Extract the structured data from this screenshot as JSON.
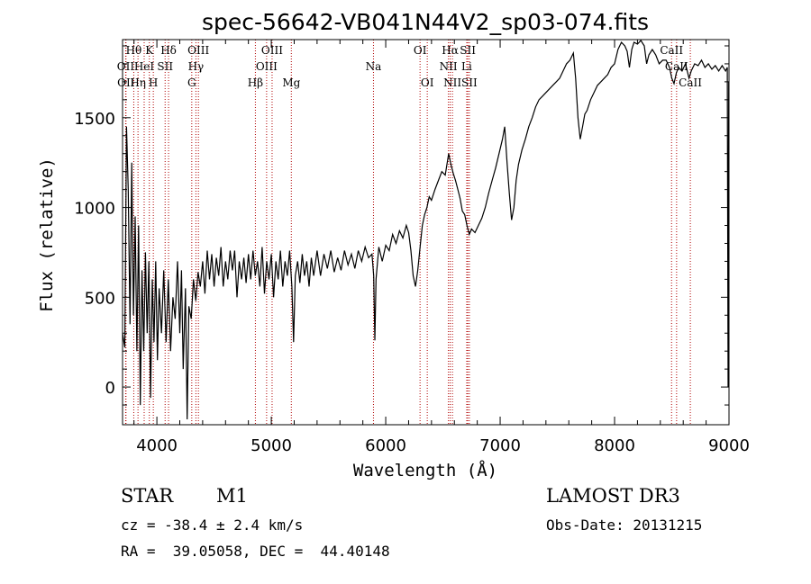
{
  "chart_data": {
    "type": "line",
    "title": "spec-56642-VB041N44V2_sp03-074.fits",
    "xlabel": "Wavelength (Å)",
    "ylabel": "Flux (relative)",
    "xlim": [
      3700,
      9000
    ],
    "ylim": [
      -210,
      1935
    ],
    "xticks": [
      4000,
      5000,
      6000,
      7000,
      8000,
      9000
    ],
    "yticks": [
      0,
      500,
      1000,
      1500
    ],
    "series": [
      {
        "name": "flux",
        "points": [
          [
            3700,
            300
          ],
          [
            3720,
            220
          ],
          [
            3735,
            1450
          ],
          [
            3750,
            1100
          ],
          [
            3765,
            350
          ],
          [
            3780,
            1250
          ],
          [
            3795,
            400
          ],
          [
            3810,
            950
          ],
          [
            3825,
            200
          ],
          [
            3840,
            900
          ],
          [
            3855,
            -100
          ],
          [
            3870,
            650
          ],
          [
            3885,
            200
          ],
          [
            3900,
            750
          ],
          [
            3915,
            300
          ],
          [
            3930,
            700
          ],
          [
            3945,
            -60
          ],
          [
            3960,
            600
          ],
          [
            3975,
            250
          ],
          [
            3990,
            700
          ],
          [
            4005,
            150
          ],
          [
            4020,
            550
          ],
          [
            4040,
            300
          ],
          [
            4060,
            650
          ],
          [
            4080,
            250
          ],
          [
            4100,
            600
          ],
          [
            4120,
            200
          ],
          [
            4140,
            500
          ],
          [
            4160,
            380
          ],
          [
            4180,
            700
          ],
          [
            4200,
            300
          ],
          [
            4215,
            650
          ],
          [
            4230,
            100
          ],
          [
            4250,
            550
          ],
          [
            4265,
            -180
          ],
          [
            4280,
            450
          ],
          [
            4300,
            380
          ],
          [
            4320,
            600
          ],
          [
            4340,
            480
          ],
          [
            4360,
            640
          ],
          [
            4380,
            560
          ],
          [
            4400,
            700
          ],
          [
            4420,
            520
          ],
          [
            4440,
            760
          ],
          [
            4460,
            600
          ],
          [
            4480,
            740
          ],
          [
            4500,
            560
          ],
          [
            4520,
            720
          ],
          [
            4540,
            620
          ],
          [
            4560,
            780
          ],
          [
            4580,
            560
          ],
          [
            4600,
            700
          ],
          [
            4620,
            600
          ],
          [
            4640,
            760
          ],
          [
            4660,
            650
          ],
          [
            4680,
            760
          ],
          [
            4700,
            500
          ],
          [
            4720,
            700
          ],
          [
            4740,
            600
          ],
          [
            4760,
            720
          ],
          [
            4780,
            580
          ],
          [
            4800,
            740
          ],
          [
            4820,
            600
          ],
          [
            4840,
            760
          ],
          [
            4860,
            620
          ],
          [
            4880,
            700
          ],
          [
            4900,
            560
          ],
          [
            4920,
            780
          ],
          [
            4940,
            520
          ],
          [
            4960,
            700
          ],
          [
            4980,
            600
          ],
          [
            5000,
            740
          ],
          [
            5020,
            500
          ],
          [
            5040,
            700
          ],
          [
            5060,
            600
          ],
          [
            5080,
            760
          ],
          [
            5100,
            560
          ],
          [
            5120,
            700
          ],
          [
            5140,
            620
          ],
          [
            5160,
            760
          ],
          [
            5180,
            560
          ],
          [
            5195,
            250
          ],
          [
            5210,
            620
          ],
          [
            5230,
            700
          ],
          [
            5250,
            580
          ],
          [
            5270,
            740
          ],
          [
            5290,
            620
          ],
          [
            5310,
            700
          ],
          [
            5330,
            560
          ],
          [
            5350,
            720
          ],
          [
            5370,
            620
          ],
          [
            5400,
            760
          ],
          [
            5430,
            620
          ],
          [
            5460,
            740
          ],
          [
            5490,
            660
          ],
          [
            5520,
            760
          ],
          [
            5550,
            640
          ],
          [
            5580,
            720
          ],
          [
            5610,
            650
          ],
          [
            5640,
            760
          ],
          [
            5670,
            680
          ],
          [
            5700,
            740
          ],
          [
            5730,
            660
          ],
          [
            5760,
            760
          ],
          [
            5790,
            700
          ],
          [
            5820,
            780
          ],
          [
            5850,
            720
          ],
          [
            5880,
            740
          ],
          [
            5895,
            620
          ],
          [
            5905,
            260
          ],
          [
            5915,
            600
          ],
          [
            5940,
            780
          ],
          [
            5970,
            700
          ],
          [
            6000,
            790
          ],
          [
            6030,
            760
          ],
          [
            6060,
            850
          ],
          [
            6090,
            800
          ],
          [
            6120,
            870
          ],
          [
            6150,
            830
          ],
          [
            6180,
            900
          ],
          [
            6200,
            860
          ],
          [
            6220,
            760
          ],
          [
            6240,
            620
          ],
          [
            6260,
            560
          ],
          [
            6280,
            650
          ],
          [
            6300,
            780
          ],
          [
            6320,
            900
          ],
          [
            6340,
            960
          ],
          [
            6360,
            1000
          ],
          [
            6380,
            1060
          ],
          [
            6400,
            1040
          ],
          [
            6430,
            1100
          ],
          [
            6460,
            1150
          ],
          [
            6490,
            1200
          ],
          [
            6520,
            1180
          ],
          [
            6550,
            1300
          ],
          [
            6570,
            1240
          ],
          [
            6590,
            1190
          ],
          [
            6610,
            1150
          ],
          [
            6630,
            1100
          ],
          [
            6650,
            1050
          ],
          [
            6670,
            980
          ],
          [
            6690,
            960
          ],
          [
            6710,
            900
          ],
          [
            6730,
            850
          ],
          [
            6750,
            880
          ],
          [
            6780,
            860
          ],
          [
            6810,
            900
          ],
          [
            6840,
            940
          ],
          [
            6870,
            1000
          ],
          [
            6900,
            1080
          ],
          [
            6930,
            1150
          ],
          [
            6960,
            1220
          ],
          [
            6990,
            1300
          ],
          [
            7020,
            1380
          ],
          [
            7040,
            1450
          ],
          [
            7060,
            1250
          ],
          [
            7080,
            1080
          ],
          [
            7100,
            930
          ],
          [
            7120,
            1000
          ],
          [
            7140,
            1150
          ],
          [
            7160,
            1240
          ],
          [
            7190,
            1320
          ],
          [
            7220,
            1380
          ],
          [
            7250,
            1450
          ],
          [
            7280,
            1500
          ],
          [
            7310,
            1560
          ],
          [
            7340,
            1600
          ],
          [
            7370,
            1620
          ],
          [
            7400,
            1640
          ],
          [
            7430,
            1660
          ],
          [
            7460,
            1680
          ],
          [
            7490,
            1700
          ],
          [
            7520,
            1720
          ],
          [
            7550,
            1760
          ],
          [
            7580,
            1800
          ],
          [
            7610,
            1820
          ],
          [
            7640,
            1860
          ],
          [
            7660,
            1720
          ],
          [
            7680,
            1500
          ],
          [
            7700,
            1380
          ],
          [
            7720,
            1450
          ],
          [
            7740,
            1520
          ],
          [
            7760,
            1540
          ],
          [
            7790,
            1600
          ],
          [
            7820,
            1640
          ],
          [
            7850,
            1680
          ],
          [
            7880,
            1700
          ],
          [
            7910,
            1720
          ],
          [
            7940,
            1740
          ],
          [
            7970,
            1780
          ],
          [
            8000,
            1800
          ],
          [
            8030,
            1880
          ],
          [
            8060,
            1920
          ],
          [
            8090,
            1900
          ],
          [
            8110,
            1870
          ],
          [
            8130,
            1780
          ],
          [
            8150,
            1880
          ],
          [
            8170,
            1920
          ],
          [
            8200,
            1910
          ],
          [
            8230,
            1930
          ],
          [
            8260,
            1900
          ],
          [
            8280,
            1800
          ],
          [
            8300,
            1850
          ],
          [
            8330,
            1880
          ],
          [
            8360,
            1850
          ],
          [
            8390,
            1800
          ],
          [
            8420,
            1820
          ],
          [
            8450,
            1820
          ],
          [
            8480,
            1780
          ],
          [
            8500,
            1720
          ],
          [
            8520,
            1690
          ],
          [
            8540,
            1750
          ],
          [
            8560,
            1780
          ],
          [
            8590,
            1760
          ],
          [
            8620,
            1800
          ],
          [
            8650,
            1720
          ],
          [
            8670,
            1760
          ],
          [
            8700,
            1800
          ],
          [
            8730,
            1790
          ],
          [
            8760,
            1820
          ],
          [
            8790,
            1780
          ],
          [
            8820,
            1800
          ],
          [
            8850,
            1770
          ],
          [
            8880,
            1790
          ],
          [
            8910,
            1760
          ],
          [
            8940,
            1790
          ],
          [
            8970,
            1760
          ],
          [
            8985,
            1780
          ],
          [
            8992,
            0
          ],
          [
            8998,
            1700
          ]
        ]
      }
    ],
    "lines": [
      {
        "label": "Hθ",
        "wave": 3798,
        "row": 0
      },
      {
        "label": "OII",
        "wave": 3727,
        "row": 1
      },
      {
        "label": "OII",
        "wave": 3730,
        "row": 2
      },
      {
        "label": "Hη",
        "wave": 3835,
        "row": 2
      },
      {
        "label": "HeI",
        "wave": 3889,
        "row": 1
      },
      {
        "label": "K",
        "wave": 3934,
        "row": 0
      },
      {
        "label": "H",
        "wave": 3969,
        "row": 2
      },
      {
        "label": "SII",
        "wave": 4072,
        "row": 1
      },
      {
        "label": "Hδ",
        "wave": 4102,
        "row": 0
      },
      {
        "label": "OIII",
        "wave": 4363,
        "row": 0
      },
      {
        "label": "Hγ",
        "wave": 4341,
        "row": 1
      },
      {
        "label": "G",
        "wave": 4305,
        "row": 2
      },
      {
        "label": "Hβ",
        "wave": 4861,
        "row": 2
      },
      {
        "label": "OIII",
        "wave": 5007,
        "row": 0
      },
      {
        "label": "OIII",
        "wave": 4959,
        "row": 1
      },
      {
        "label": "Mg",
        "wave": 5175,
        "row": 2
      },
      {
        "label": "Na",
        "wave": 5893,
        "row": 1
      },
      {
        "label": "OI",
        "wave": 6300,
        "row": 0
      },
      {
        "label": "OI",
        "wave": 6363,
        "row": 2
      },
      {
        "label": "Hα",
        "wave": 6563,
        "row": 0
      },
      {
        "label": "NII",
        "wave": 6548,
        "row": 1
      },
      {
        "label": "NII",
        "wave": 6583,
        "row": 2
      },
      {
        "label": "SII",
        "wave": 6717,
        "row": 0
      },
      {
        "label": "Li",
        "wave": 6708,
        "row": 1
      },
      {
        "label": "SII",
        "wave": 6731,
        "row": 2
      },
      {
        "label": "CaII",
        "wave": 8498,
        "row": 0
      },
      {
        "label": "CaII",
        "wave": 8542,
        "row": 1
      },
      {
        "label": "CaII",
        "wave": 8662,
        "row": 2
      }
    ],
    "line_marker_color": "#b00000",
    "line_color": "#000000"
  },
  "info": {
    "object_type": "STAR",
    "subclass": "M1",
    "survey": "LAMOST DR3",
    "redshift": "cz = -38.4 ± 2.4 km/s",
    "obs_date": "Obs-Date: 20131215",
    "coords": "RA =  39.05058, DEC =  44.40148"
  }
}
